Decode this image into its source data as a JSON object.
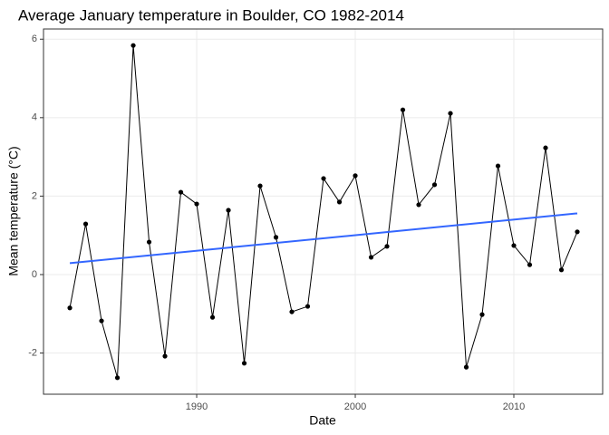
{
  "chart_data": {
    "type": "line",
    "title": "Average January temperature in Boulder, CO 1982-2014",
    "x_label": "Date",
    "y_label": "Mean temperature (°C)",
    "x": [
      1982,
      1983,
      1984,
      1985,
      1986,
      1987,
      1988,
      1989,
      1990,
      1991,
      1992,
      1993,
      1994,
      1995,
      1996,
      1997,
      1998,
      1999,
      2000,
      2001,
      2002,
      2003,
      2004,
      2005,
      2006,
      2007,
      2008,
      2009,
      2010,
      2011,
      2012,
      2013,
      2014
    ],
    "series": [
      {
        "color": "#000000",
        "values": [
          -0.85,
          1.29,
          -1.18,
          -2.63,
          5.84,
          0.83,
          -2.08,
          2.1,
          1.8,
          -1.09,
          1.64,
          -2.26,
          2.26,
          0.95,
          -0.95,
          -0.81,
          2.45,
          1.85,
          2.52,
          0.44,
          0.72,
          4.2,
          1.78,
          2.29,
          4.11,
          -2.36,
          -1.02,
          2.77,
          0.74,
          0.25,
          3.23,
          0.12,
          1.09
        ]
      }
    ],
    "trend_line": {
      "color": "#3366ff",
      "x": [
        1982,
        2014
      ],
      "values": [
        0.29,
        1.56
      ]
    },
    "xlim": [
      1980.34,
      2015.6
    ],
    "xticks": [
      1990,
      2000,
      2010
    ],
    "ylim": [
      -3.05,
      6.26
    ],
    "yticks": [
      -2,
      0,
      2,
      4,
      6
    ],
    "grid": true
  }
}
